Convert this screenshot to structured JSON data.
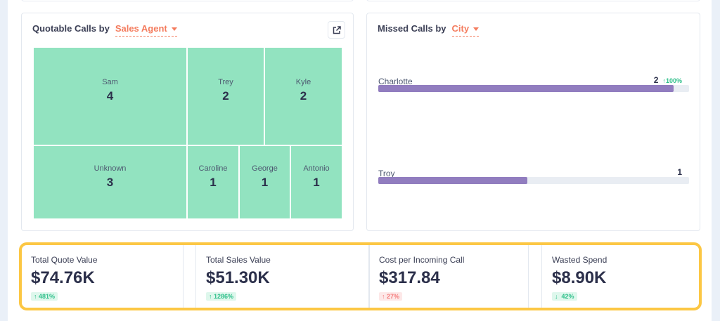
{
  "quotable": {
    "title": "Quotable Calls by",
    "dimension": "Sales Agent",
    "cells": [
      {
        "name": "Sam",
        "value": "4"
      },
      {
        "name": "Trey",
        "value": "2"
      },
      {
        "name": "Kyle",
        "value": "2"
      },
      {
        "name": "Unknown",
        "value": "3"
      },
      {
        "name": "Caroline",
        "value": "1"
      },
      {
        "name": "George",
        "value": "1"
      },
      {
        "name": "Antonio",
        "value": "1"
      }
    ],
    "color": "#92e3c0"
  },
  "missed": {
    "title": "Missed Calls by",
    "dimension": "City",
    "rows": [
      {
        "name": "Charlotte",
        "value": "2",
        "change": "100%",
        "fill": 0.95
      },
      {
        "name": "Troy",
        "value": "1",
        "change": "",
        "fill": 0.48
      }
    ],
    "bar_color": "#917dbf"
  },
  "kpis": [
    {
      "title": "Total Quote Value",
      "value": "$74.76K",
      "change": "481%",
      "direction": "up",
      "tone": "good"
    },
    {
      "title": "Total Sales Value",
      "value": "$51.30K",
      "change": "1286%",
      "direction": "up",
      "tone": "good"
    },
    {
      "title": "Cost per Incoming Call",
      "value": "$317.84",
      "change": "27%",
      "direction": "up",
      "tone": "bad"
    },
    {
      "title": "Wasted Spend",
      "value": "$8.90K",
      "change": "42%",
      "direction": "down",
      "tone": "good"
    }
  ],
  "highlight_color": "#fcc744"
}
